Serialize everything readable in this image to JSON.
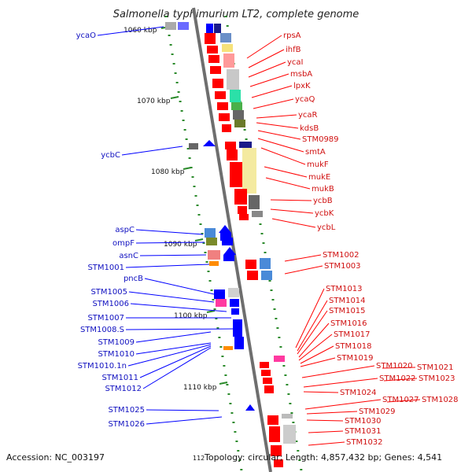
{
  "title": "Salmonella typhimurium LT2, complete genome",
  "footer": {
    "accession": "Accession: NC_003197",
    "page_marker": "112",
    "summary": "Topology: circular; Length: 4,857,432 bp; Genes: 4,541"
  },
  "ticks": [
    "1060 kbp",
    "1070 kbp",
    "1080 kbp",
    "1090 kbp",
    "1100 kbp",
    "1110 kbp"
  ],
  "left_genes": [
    "ycaO",
    "ycbC",
    "aspC",
    "ompF",
    "asnC",
    "STM1001",
    "pncB",
    "STM1005",
    "STM1006",
    "STM1007",
    "STM1008.S",
    "STM1009",
    "STM1010",
    "STM1010.1n",
    "STM1011",
    "STM1012",
    "STM1025",
    "STM1026"
  ],
  "right_genes": [
    "rpsA",
    "ihfB",
    "ycaI",
    "msbA",
    "lpxK",
    "ycaQ",
    "ycaR",
    "kdsB",
    "STM0989",
    "smtA",
    "mukF",
    "mukE",
    "mukB",
    "ycbB",
    "ycbK",
    "ycbL",
    "STM1002",
    "STM1003",
    "STM1013",
    "STM1014",
    "STM1015",
    "STM1016",
    "STM1017",
    "STM1018",
    "STM1019",
    "STM1020",
    "STM1021",
    "STM1022",
    "STM1023",
    "STM1024",
    "STM1027",
    "STM1028",
    "STM1029",
    "STM1030",
    "STM1031",
    "STM1032"
  ],
  "colors": {
    "forward": "#ff0000",
    "reverse": "#0000ff",
    "backbone": "#808080",
    "tick": "#2a8a2a"
  }
}
